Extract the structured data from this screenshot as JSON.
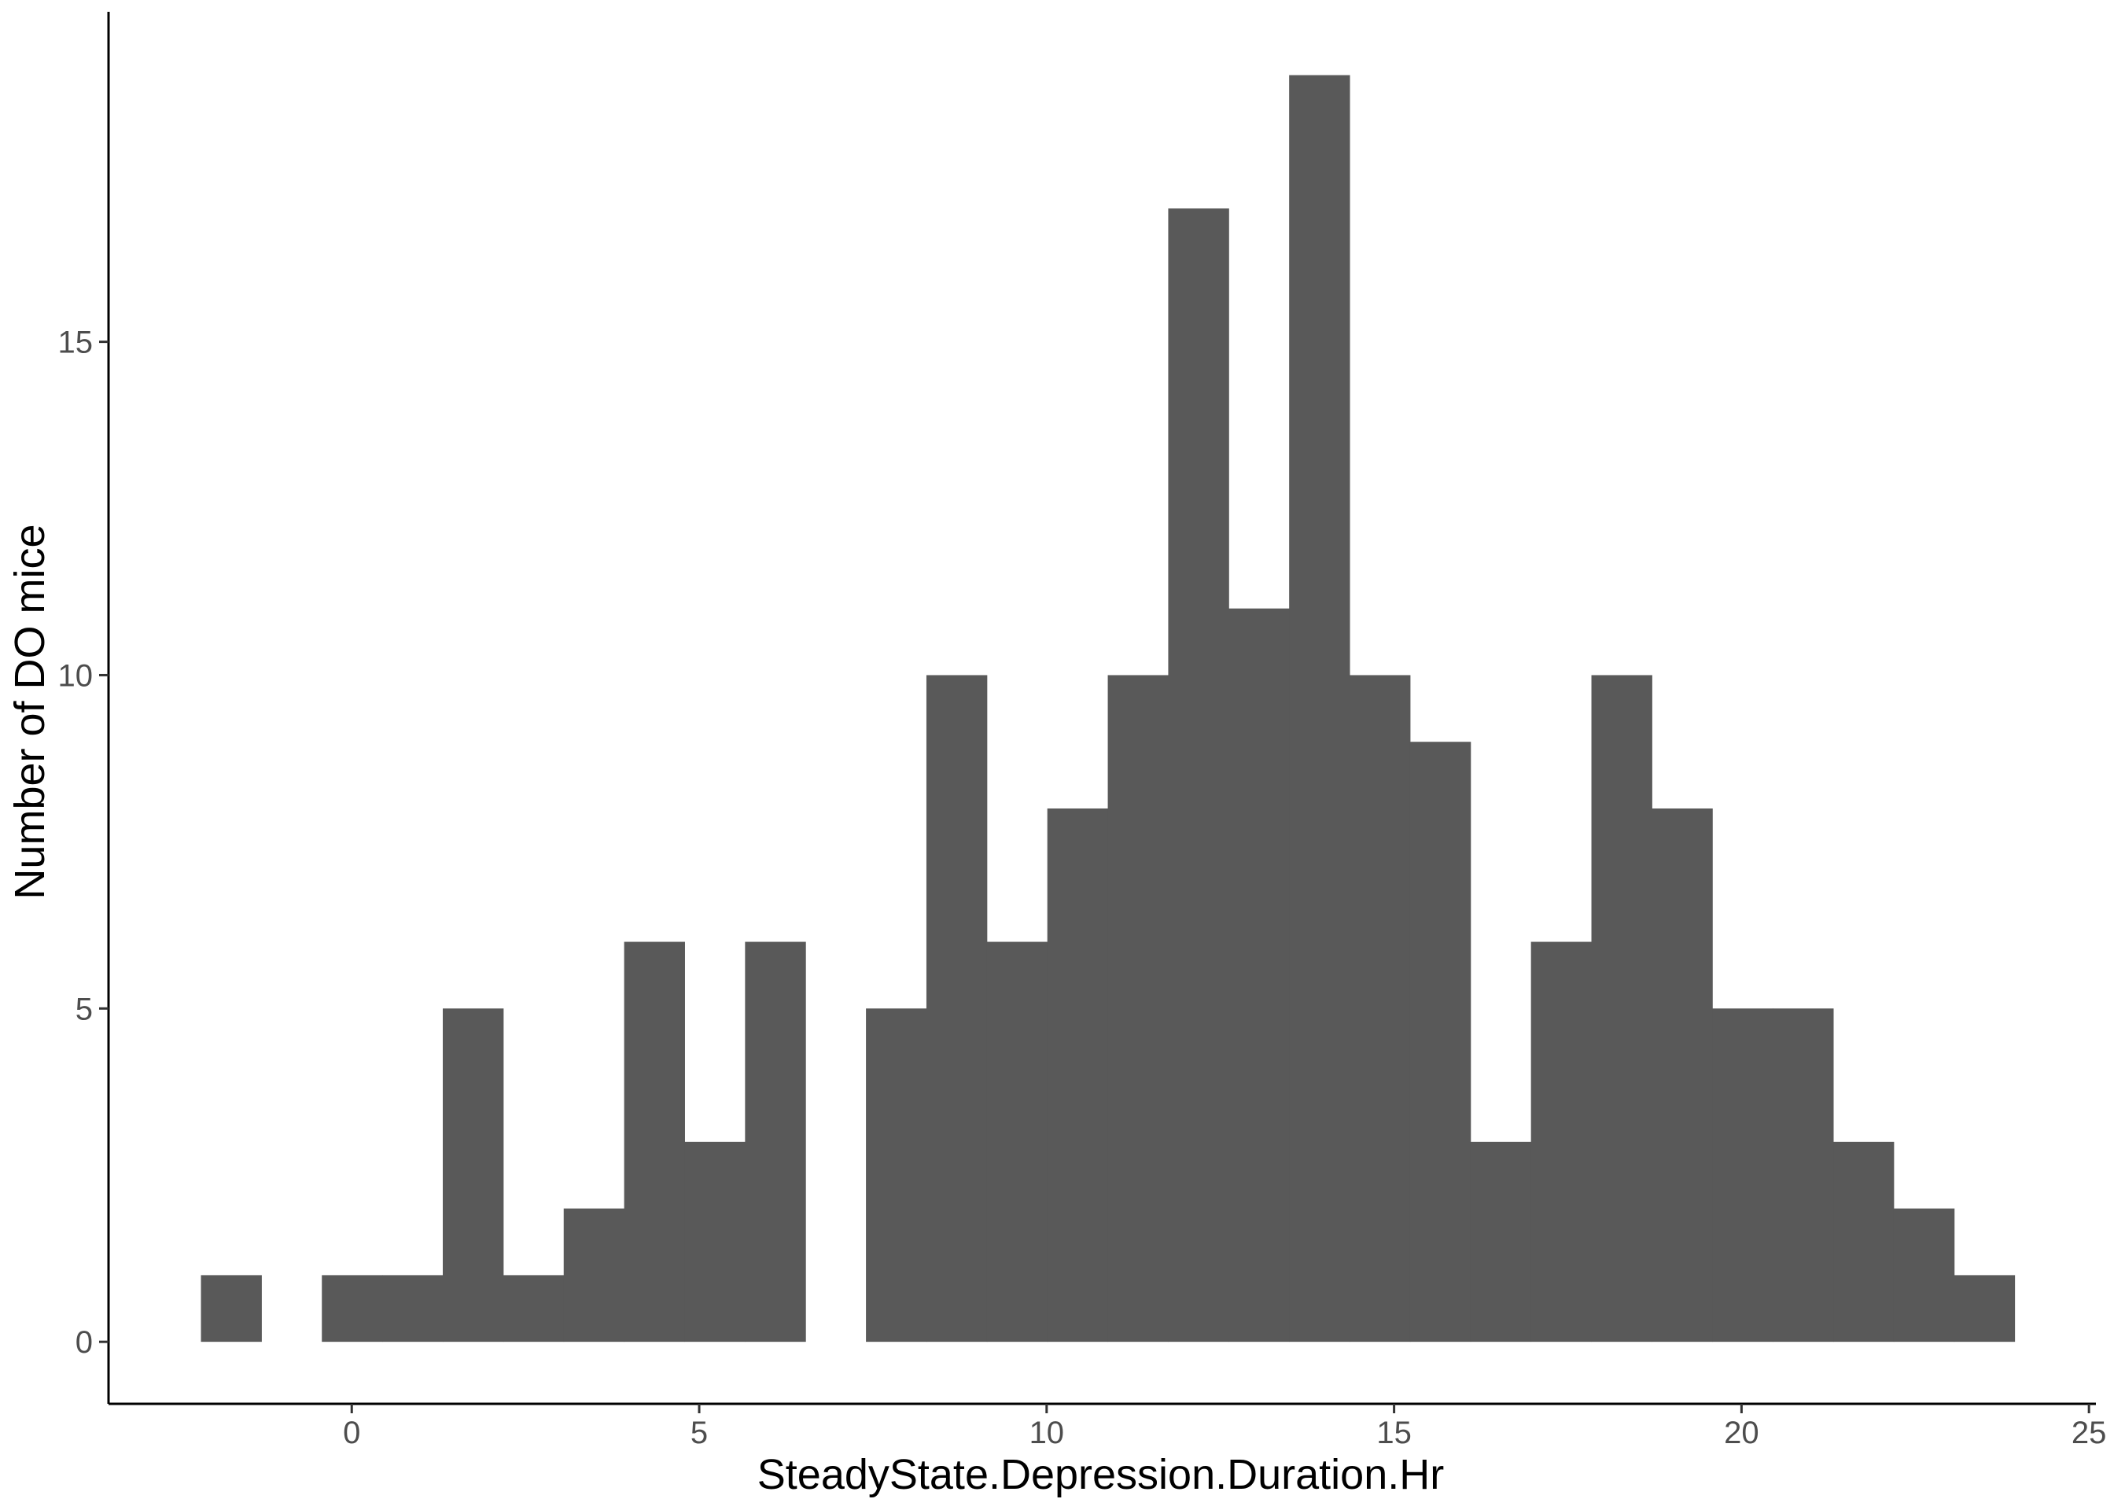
{
  "chart_data": {
    "type": "bar",
    "title": "",
    "xlabel": "SteadyState.Depression.Duration.Hr",
    "ylabel": "Number of DO mice",
    "xlim": [
      -3.5,
      25.1
    ],
    "ylim": [
      -0.93,
      19.95
    ],
    "xticks": [
      0,
      5,
      10,
      15,
      20,
      25
    ],
    "yticks": [
      0,
      5,
      10,
      15
    ],
    "bar_color": "#595959",
    "grid": false,
    "bin_width": 0.87,
    "bins": [
      {
        "x0": -2.17,
        "x1": -1.3,
        "count": 1
      },
      {
        "x0": -1.3,
        "x1": -0.43,
        "count": 0
      },
      {
        "x0": -0.43,
        "x1": 0.44,
        "count": 1
      },
      {
        "x0": 0.44,
        "x1": 1.31,
        "count": 1
      },
      {
        "x0": 1.31,
        "x1": 2.18,
        "count": 5
      },
      {
        "x0": 2.18,
        "x1": 3.05,
        "count": 1
      },
      {
        "x0": 3.05,
        "x1": 3.92,
        "count": 2
      },
      {
        "x0": 3.92,
        "x1": 4.79,
        "count": 6
      },
      {
        "x0": 4.79,
        "x1": 5.66,
        "count": 3
      },
      {
        "x0": 5.66,
        "x1": 6.53,
        "count": 6
      },
      {
        "x0": 6.53,
        "x1": 7.4,
        "count": 0
      },
      {
        "x0": 7.4,
        "x1": 8.27,
        "count": 5
      },
      {
        "x0": 8.27,
        "x1": 9.14,
        "count": 10
      },
      {
        "x0": 9.14,
        "x1": 10.01,
        "count": 6
      },
      {
        "x0": 10.01,
        "x1": 10.88,
        "count": 8
      },
      {
        "x0": 10.88,
        "x1": 11.75,
        "count": 10
      },
      {
        "x0": 11.75,
        "x1": 12.62,
        "count": 17
      },
      {
        "x0": 12.62,
        "x1": 13.49,
        "count": 11
      },
      {
        "x0": 13.49,
        "x1": 14.36,
        "count": 19
      },
      {
        "x0": 14.36,
        "x1": 15.23,
        "count": 10
      },
      {
        "x0": 15.23,
        "x1": 16.1,
        "count": 9
      },
      {
        "x0": 16.1,
        "x1": 16.97,
        "count": 3
      },
      {
        "x0": 16.97,
        "x1": 17.84,
        "count": 6
      },
      {
        "x0": 17.84,
        "x1": 18.71,
        "count": 10
      },
      {
        "x0": 18.71,
        "x1": 19.58,
        "count": 8
      },
      {
        "x0": 19.58,
        "x1": 20.45,
        "count": 5
      },
      {
        "x0": 20.45,
        "x1": 21.32,
        "count": 5
      },
      {
        "x0": 21.32,
        "x1": 22.19,
        "count": 3
      },
      {
        "x0": 22.19,
        "x1": 23.06,
        "count": 2
      },
      {
        "x0": 23.06,
        "x1": 23.93,
        "count": 1
      }
    ]
  }
}
